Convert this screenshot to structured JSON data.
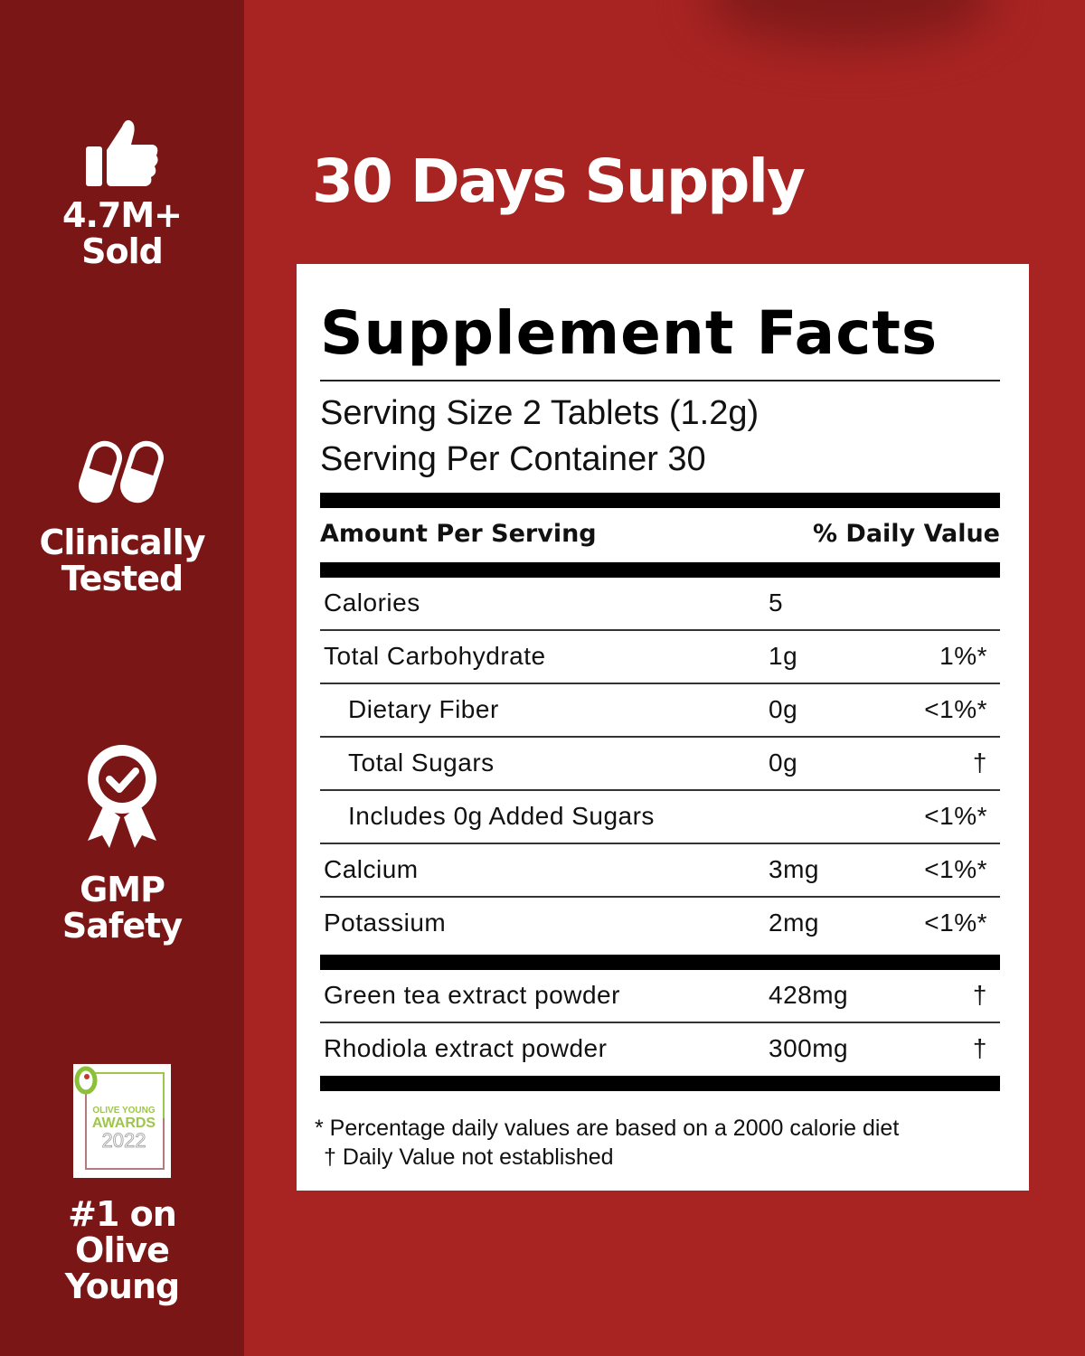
{
  "colors": {
    "background": "#a82422",
    "sidebar": "#7a1616",
    "card": "#ffffff"
  },
  "sidebar": {
    "badges": [
      {
        "icon": "thumbs-up-icon",
        "label_line1": "4.7M+",
        "label_line2": "Sold"
      },
      {
        "icon": "capsules-icon",
        "label_line1": "Clinically",
        "label_line2": "Tested"
      },
      {
        "icon": "award-ribbon-check-icon",
        "label_line1": "GMP",
        "label_line2": "Safety"
      },
      {
        "icon": "olive-young-awards-logo",
        "logo_text": "OLIVE YOUNG AWARDS 2022",
        "label_line1": "#1 on",
        "label_line2": "Olive",
        "label_line3": "Young"
      }
    ]
  },
  "headline": "30 Days Supply",
  "facts": {
    "title": "Supplement Facts",
    "serving_size": "Serving Size 2 Tablets (1.2g)",
    "servings_per_container": "Serving Per Container 30",
    "header_amount": "Amount Per Serving",
    "header_dv": "% Daily Value",
    "rows": [
      {
        "name": "Calories",
        "amount": "5",
        "dv": ""
      },
      {
        "name": "Total Carbohydrate",
        "amount": "1g",
        "dv": "1%*"
      },
      {
        "name": "Dietary Fiber",
        "amount": "0g",
        "dv": "<1%*"
      },
      {
        "name": "Total Sugars",
        "amount": "0g",
        "dv": "†"
      },
      {
        "name": "Includes 0g Added Sugars",
        "amount": "",
        "dv": "<1%*"
      },
      {
        "name": "Calcium",
        "amount": "3mg",
        "dv": "<1%*"
      },
      {
        "name": "Potassium",
        "amount": "2mg",
        "dv": "<1%*"
      }
    ],
    "extracts": [
      {
        "name": "Green tea extract powder",
        "amount": "428mg",
        "dv": "†"
      },
      {
        "name": "Rhodiola extract powder",
        "amount": "300mg",
        "dv": "†"
      }
    ],
    "footnote1": "* Percentage daily values are based on a 2000 calorie diet",
    "footnote2": "† Daily Value not established"
  }
}
